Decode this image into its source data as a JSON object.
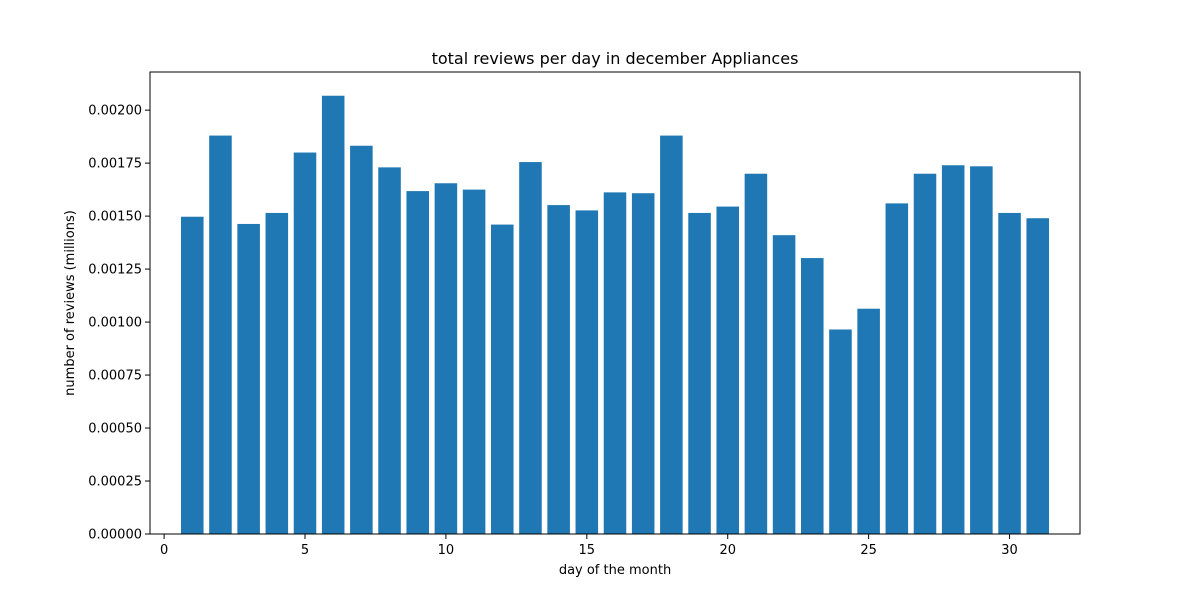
{
  "chart_data": {
    "type": "bar",
    "title": "total reviews per day in december Appliances",
    "xlabel": "day of the month",
    "ylabel": "number of reviews (millions)",
    "x": [
      1,
      2,
      3,
      4,
      5,
      6,
      7,
      8,
      9,
      10,
      11,
      12,
      13,
      14,
      15,
      16,
      17,
      18,
      19,
      20,
      21,
      22,
      23,
      24,
      25,
      26,
      27,
      28,
      29,
      30,
      31
    ],
    "values": [
      0.001497,
      0.00188,
      0.001463,
      0.001515,
      0.0018,
      0.002068,
      0.001832,
      0.00173,
      0.001618,
      0.001655,
      0.001625,
      0.00146,
      0.001755,
      0.001552,
      0.001527,
      0.001612,
      0.001608,
      0.00188,
      0.001515,
      0.001545,
      0.0017,
      0.00141,
      0.001302,
      0.000965,
      0.001063,
      0.00156,
      0.0017,
      0.00174,
      0.001735,
      0.001515,
      0.00149
    ],
    "xlim": [
      -0.5,
      32.5
    ],
    "ylim": [
      0,
      0.00218
    ],
    "xticks": [
      0,
      5,
      10,
      15,
      20,
      25,
      30
    ],
    "yticks": [
      0,
      0.00025,
      0.0005,
      0.00075,
      0.001,
      0.00125,
      0.0015,
      0.00175,
      0.002
    ],
    "ytick_labels": [
      "0.00000",
      "0.00025",
      "0.00050",
      "0.00075",
      "0.00100",
      "0.00125",
      "0.00150",
      "0.00175",
      "0.00200"
    ],
    "bar_color": "#1f77b4",
    "grid": false,
    "legend": false
  }
}
